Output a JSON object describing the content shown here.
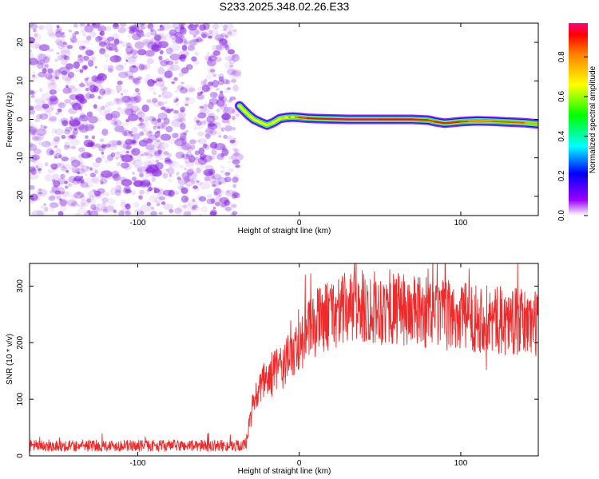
{
  "title": "S233.2025.348.02.26.E33",
  "colors": {
    "snr_line": "#ee2a2a",
    "noise": "#8a2be2",
    "signal_core": "#ff1e1e",
    "colorbar": [
      "#ffffff",
      "#9b00ff",
      "#0000ff",
      "#00ffff",
      "#00ff00",
      "#ffff00",
      "#ff8000",
      "#ff0000",
      "#ff007f"
    ]
  },
  "chart_data": [
    {
      "type": "heatmap",
      "title": "S233.2025.348.02.26.E33",
      "xlabel": "Height of straight line (km)",
      "ylabel": "Frequency (Hz)",
      "xlim": [
        -167,
        148
      ],
      "ylim": [
        -25,
        25
      ],
      "xticks": [
        -100,
        0,
        100
      ],
      "yticks": [
        -20,
        -10,
        0,
        10,
        20
      ],
      "xtick_labels": [
        "-100",
        "0",
        "100"
      ],
      "ytick_labels": [
        "-20",
        "-10",
        "0",
        "10",
        "20"
      ],
      "noise_region_x": [
        -167,
        -38
      ],
      "noise_level": 0.25,
      "signal_onset_x": -38,
      "colorbar": {
        "label": "Normalized spectral amplitude",
        "range": [
          0,
          0.97
        ],
        "ticks": [
          0,
          0.2,
          0.4,
          0.6,
          0.8
        ],
        "tick_labels": [
          "0.0",
          "0.2",
          "0.4",
          "0.6",
          "0.8"
        ]
      },
      "signal_track": {
        "x": [
          -37,
          -34,
          -31,
          -28,
          -24,
          -20,
          -16,
          -12,
          -8,
          -4,
          0,
          5,
          10,
          20,
          30,
          40,
          50,
          60,
          70,
          80,
          84,
          90,
          95,
          100,
          105,
          110,
          120,
          130,
          140,
          148
        ],
        "frequency": [
          3.5,
          2.2,
          1.0,
          0.0,
          -0.8,
          -1.5,
          -0.8,
          0.2,
          0.5,
          0.6,
          0.5,
          0.3,
          0.2,
          0.1,
          0.0,
          0.0,
          0.0,
          0.0,
          0.0,
          -0.2,
          -0.6,
          -1.0,
          -0.8,
          -0.6,
          -0.5,
          -0.4,
          -0.5,
          -0.7,
          -0.9,
          -1.2
        ],
        "amplitude": [
          0.55,
          0.6,
          0.5,
          0.5,
          0.55,
          0.6,
          0.65,
          0.7,
          0.8,
          0.8,
          0.85,
          0.9,
          0.95,
          0.95,
          0.95,
          0.95,
          0.95,
          0.9,
          0.95,
          0.85,
          0.9,
          0.9,
          0.9,
          0.9,
          0.85,
          0.8,
          0.85,
          0.85,
          0.85,
          0.7
        ]
      }
    },
    {
      "type": "line",
      "xlabel": "Height of straight line (km)",
      "ylabel": "SNR (10 * v/v)",
      "xlim": [
        -167,
        148
      ],
      "ylim": [
        0,
        340
      ],
      "xticks": [
        -100,
        0,
        100
      ],
      "yticks": [
        0,
        100,
        200,
        300
      ],
      "xtick_labels": [
        "-100",
        "0",
        "100"
      ],
      "ytick_labels": [
        "0",
        "100",
        "200",
        "300"
      ],
      "series": [
        {
          "x": [
            -167,
            -150,
            -130,
            -110,
            -90,
            -70,
            -50,
            -38,
            -33,
            -28,
            -24,
            -20,
            -15,
            -10,
            -5,
            0,
            5,
            10,
            15,
            20,
            25,
            30,
            40,
            50,
            60,
            70,
            80,
            90,
            100,
            110,
            120,
            130,
            140,
            148
          ],
          "y": [
            18,
            18,
            18,
            18,
            18,
            18,
            18,
            18,
            20,
            95,
            120,
            135,
            150,
            160,
            175,
            200,
            215,
            235,
            245,
            250,
            255,
            260,
            262,
            262,
            258,
            255,
            252,
            248,
            245,
            245,
            240,
            238,
            235,
            235
          ]
        }
      ]
    }
  ]
}
